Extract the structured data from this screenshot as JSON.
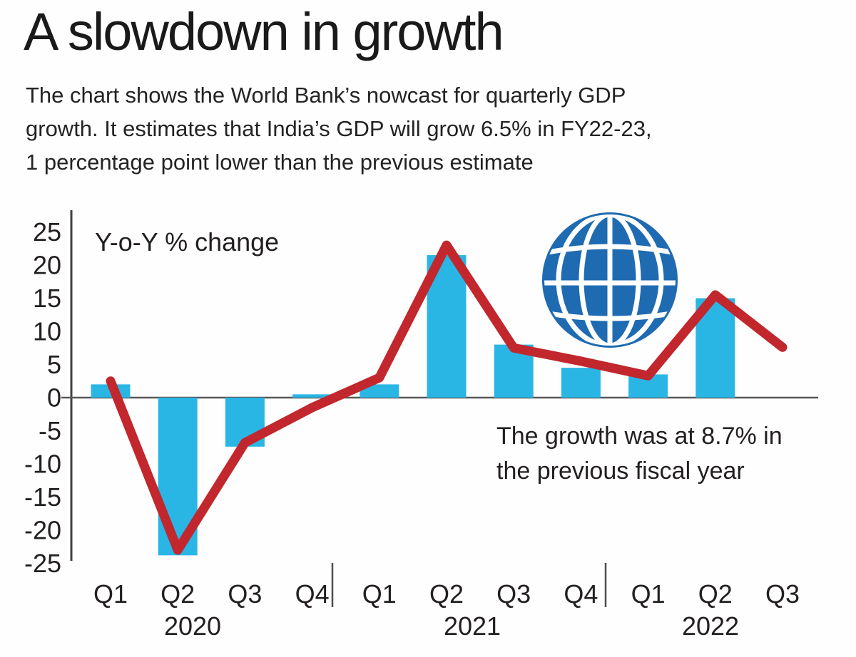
{
  "header": {
    "title": "A slowdown in growth",
    "subtitle_lines": [
      "The chart shows the World Bank’s nowcast for quarterly GDP",
      "growth. It estimates that India’s GDP will grow 6.5% in FY22-23,",
      "1 percentage point lower than the previous estimate"
    ]
  },
  "chart_data": {
    "type": "bar+line",
    "unit_label": "Y-o-Y % change",
    "categories": [
      "Q1",
      "Q2",
      "Q3",
      "Q4",
      "Q1",
      "Q2",
      "Q3",
      "Q4",
      "Q1",
      "Q2",
      "Q3"
    ],
    "year_groups": [
      {
        "label": "2020",
        "from_index": 0,
        "to_index": 3
      },
      {
        "label": "2021",
        "from_index": 4,
        "to_index": 7
      },
      {
        "label": "2022",
        "from_index": 8,
        "to_index": 10
      }
    ],
    "yticks": [
      25,
      20,
      15,
      10,
      5,
      0,
      -5,
      -10,
      -15,
      -20,
      -25
    ],
    "ylim": [
      -25,
      25
    ],
    "grid": false,
    "legend": "none",
    "series": [
      {
        "name": "Quarterly GDP growth",
        "type": "bar",
        "color": "#29b6e5",
        "values": [
          2,
          -23.8,
          -7.4,
          0.5,
          2,
          21.5,
          8,
          4.5,
          3.5,
          15,
          null
        ]
      },
      {
        "name": "World Bank nowcast",
        "type": "line",
        "color": "#c1272d",
        "values": [
          2.5,
          -23,
          -6.8,
          -1.5,
          3,
          23,
          7.5,
          5.5,
          3.3,
          15.5,
          7.6
        ]
      }
    ],
    "annotation_lines": [
      "The growth was at 8.7% in",
      "the previous fiscal year"
    ]
  },
  "colors": {
    "bar_cyan": "#29b6e5",
    "line_red": "#c1272d",
    "globe_blue": "#1e6bb2",
    "text": "#231f20",
    "axis": "#4d4d4d"
  }
}
